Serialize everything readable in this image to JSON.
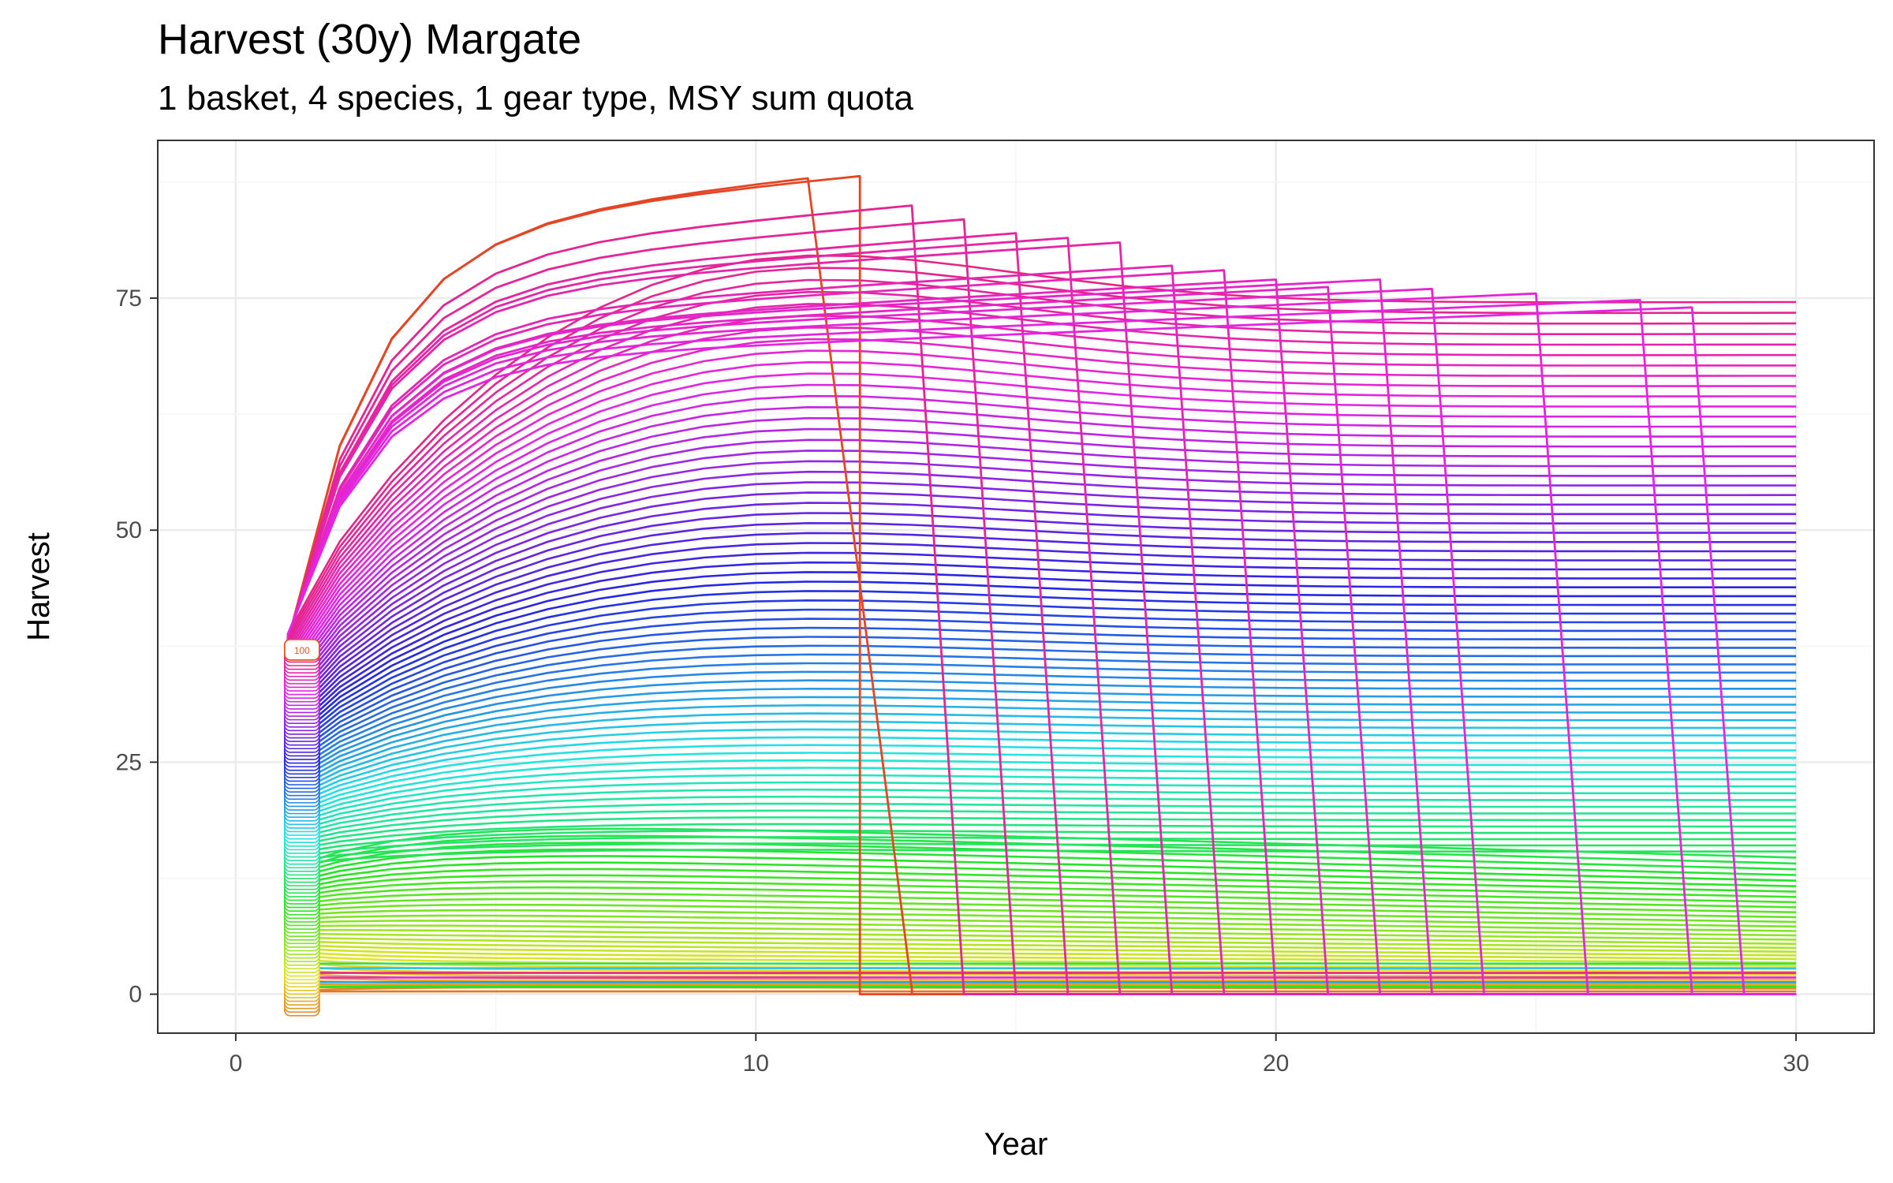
{
  "chart_data": {
    "type": "line",
    "title": "Harvest (30y) Margate",
    "subtitle": "1 basket, 4 species, 1 gear type, MSY sum quota",
    "xlabel": "Year",
    "ylabel": "Harvest",
    "xlim": [
      -1.5,
      31.5
    ],
    "ylim": [
      -4.2,
      92
    ],
    "xticks": [
      0,
      10,
      20,
      30
    ],
    "yticks": [
      0,
      25,
      50,
      75
    ],
    "grid": true,
    "legend": "none",
    "series_count": 100,
    "label_example": "100",
    "x": [
      1,
      2,
      3,
      4,
      5,
      6,
      7,
      8,
      9,
      10,
      11,
      12,
      13,
      14,
      15,
      16,
      17,
      18,
      19,
      20,
      21,
      22,
      23,
      24,
      25,
      26,
      27,
      28,
      29,
      30
    ],
    "series_profiles": [
      {
        "plateau": 38,
        "peak": [
          4,
          1.0
        ],
        "y2": 0.5
      },
      {
        "plateau": 40,
        "peak": [
          6,
          1.04
        ],
        "y2": 0.55
      },
      {
        "plateau": 44,
        "peak": [
          8,
          1.06
        ],
        "y2": 0.6
      },
      {
        "plateau": 48,
        "peak": [
          10,
          1.08
        ],
        "y2": 0.68
      },
      {
        "plateau": 55,
        "peak": [
          12,
          1.1
        ],
        "y2": 0.75
      },
      {
        "plateau": 65,
        "peak": [
          14,
          1.15
        ],
        "y2": 0.82
      },
      {
        "plateau": 74,
        "peak": [
          16,
          1.18
        ],
        "y2": 0.9
      }
    ],
    "collapse_lines": [
      {
        "peak_year": 11,
        "peak": 88,
        "drop_year": 13,
        "drop_value": 0.5
      },
      {
        "peak_year": 12,
        "peak": 88.2,
        "drop_year": 12,
        "drop_value": 68
      },
      {
        "peak_year": 13,
        "peak": 85,
        "drop_year": 14,
        "drop_value": 0
      },
      {
        "peak_year": 14,
        "peak": 83.5,
        "drop_year": 15,
        "drop_value": 0
      },
      {
        "peak_year": 15,
        "peak": 82,
        "drop_year": 16,
        "drop_value": 0
      },
      {
        "peak_year": 16,
        "peak": 81.5,
        "drop_year": 17,
        "drop_value": 0
      },
      {
        "peak_year": 17,
        "peak": 81,
        "drop_year": 18,
        "drop_value": 0
      },
      {
        "peak_year": 18,
        "peak": 78.5,
        "drop_year": 19,
        "drop_value": 0
      },
      {
        "peak_year": 19,
        "peak": 78,
        "drop_year": 20,
        "drop_value": 0
      },
      {
        "peak_year": 20,
        "peak": 77,
        "drop_year": 21,
        "drop_value": 0
      },
      {
        "peak_year": 21,
        "peak": 76.2,
        "drop_year": 22,
        "drop_value": 0
      },
      {
        "peak_year": 22,
        "peak": 77,
        "drop_year": 23,
        "drop_value": 0
      },
      {
        "peak_year": 23,
        "peak": 76,
        "drop_year": 24,
        "drop_value": 0
      },
      {
        "peak_year": 25,
        "peak": 75.5,
        "drop_year": 26,
        "drop_value": 0
      },
      {
        "peak_year": 27,
        "peak": 74.8,
        "drop_year": 28,
        "drop_value": 0
      },
      {
        "peak_year": 28,
        "peak": 74,
        "drop_year": 29,
        "drop_value": 0
      }
    ]
  }
}
